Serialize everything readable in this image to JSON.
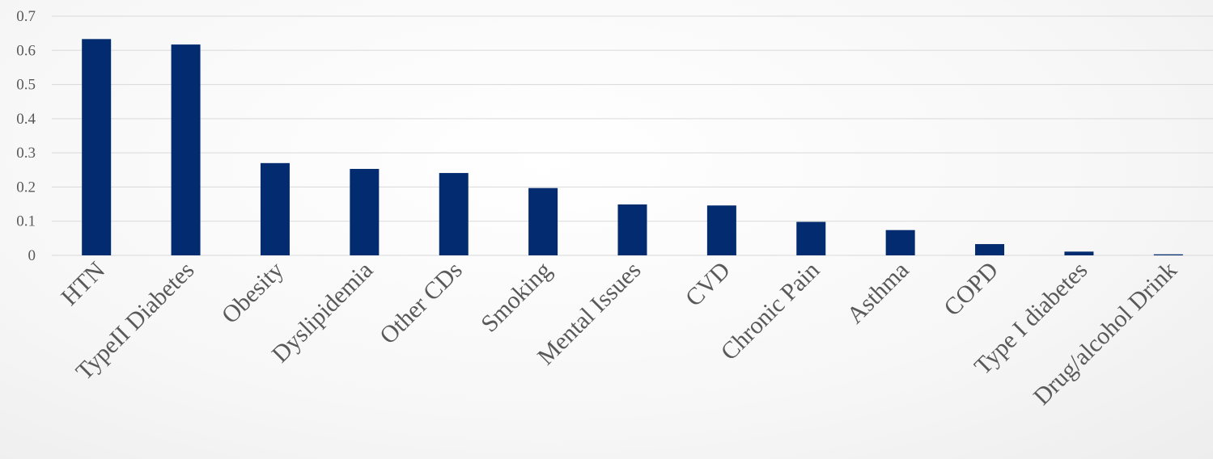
{
  "chart_data": {
    "type": "bar",
    "title": "",
    "xlabel": "",
    "ylabel": "",
    "ylim": [
      0,
      0.7
    ],
    "yticks": [
      "0",
      "0.1",
      "0.2",
      "0.3",
      "0.4",
      "0.5",
      "0.6",
      "0.7"
    ],
    "grid": true,
    "legend": "none",
    "categories": [
      "HTN",
      "TypeII Diabetes",
      "Obesity",
      "Dyslipidemia",
      "Other CDs",
      "Smoking",
      "Mental Issues",
      "CVD",
      "Chronic Pain",
      "Asthma",
      "COPD",
      "Type I diabetes",
      "Drug/alcohol Drink"
    ],
    "series": [
      {
        "values": [
          0.633,
          0.617,
          0.27,
          0.253,
          0.241,
          0.197,
          0.149,
          0.146,
          0.098,
          0.074,
          0.033,
          0.011,
          0.003
        ]
      }
    ],
    "colors": {
      "bar": "#032B6F",
      "grid": "#D9D9D9",
      "text": "#595959"
    }
  }
}
